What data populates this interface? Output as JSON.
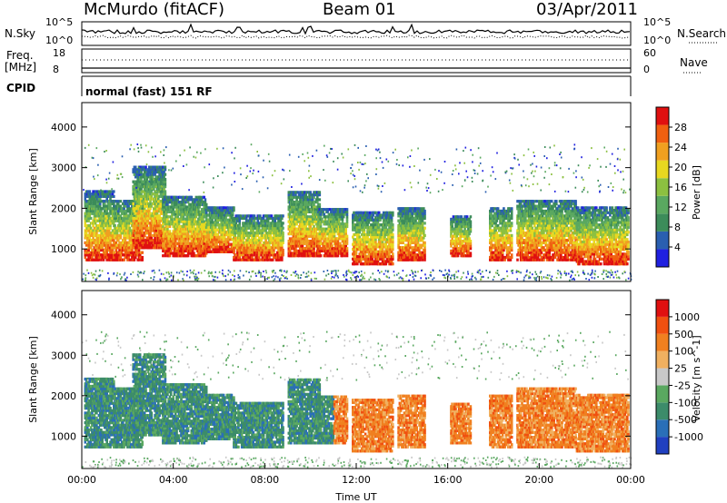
{
  "header": {
    "station": "McMurdo (fitACF)",
    "beam": "Beam 01",
    "date": "03/Apr/2011"
  },
  "summary_panels": {
    "nsky_label": "N.Sky",
    "nsearch_label": "N.Search",
    "nsky_ticks": [
      "10^5",
      "10^0"
    ],
    "nsearch_ticks": [
      "10^5",
      "10^0"
    ],
    "freq_label_1": "Freq.",
    "freq_label_2": "[MHz]",
    "freq_ticks": [
      "18",
      "8"
    ],
    "nave_label": "Nave",
    "nave_ticks": [
      "60",
      "0"
    ],
    "cpid_label": "CPID",
    "cpid_text": "normal (fast) 151 RF"
  },
  "chart_data": [
    {
      "type": "heatmap",
      "name": "power",
      "ylabel": "Slant Range [km]",
      "ylim": [
        200,
        4600
      ],
      "yticks": [
        "1000",
        "2000",
        "3000",
        "4000"
      ],
      "xlim": [
        "00:00",
        "24:00"
      ],
      "colorbar_label": "Power [dB]",
      "colorbar_ticks": [
        "28",
        "24",
        "20",
        "16",
        "12",
        "8",
        "4"
      ],
      "colors": [
        "#2020e0",
        "#2a5fb0",
        "#3c8c5a",
        "#5aa860",
        "#8cc040",
        "#e8d820",
        "#f0a020",
        "#f06010",
        "#e01010"
      ],
      "grid": false
    },
    {
      "type": "heatmap",
      "name": "velocity",
      "ylabel": "Slant Range [km]",
      "ylim": [
        200,
        4600
      ],
      "yticks": [
        "1000",
        "2000",
        "3000",
        "4000"
      ],
      "xlabel": "Time UT",
      "xticks": [
        "00:00",
        "04:00",
        "08:00",
        "12:00",
        "16:00",
        "20:00",
        "00:00"
      ],
      "colorbar_label": "Velocity [m s^-1]",
      "colorbar_ticks": [
        "1000",
        "500",
        "100",
        "25",
        "-25",
        "-100",
        "-500",
        "-1000"
      ],
      "colors": [
        "#2040c0",
        "#2a6fb8",
        "#3c8c6a",
        "#5aa860",
        "#c8c8c8",
        "#f0b060",
        "#f08020",
        "#f05010",
        "#e01010"
      ],
      "grid": false
    }
  ]
}
